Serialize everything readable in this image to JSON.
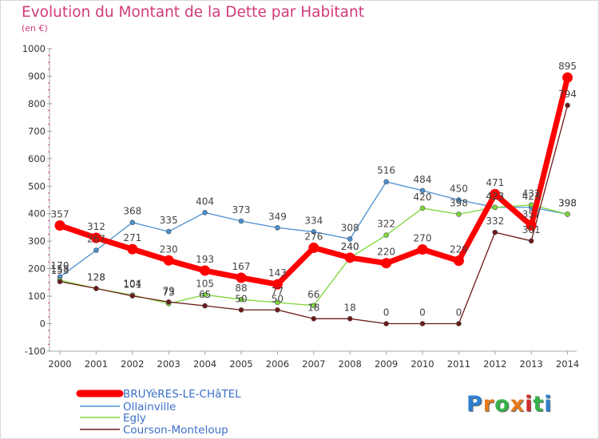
{
  "header": {
    "title": "Evolution du Montant de la Dette par Habitant",
    "unit": "(en €)"
  },
  "logo": {
    "text": "Proxiti",
    "colors": [
      "#2e7fd0",
      "#e77b1c",
      "#34b34a",
      "#e77b1c",
      "#d22b2b",
      "#34b34a",
      "#2e7fd0"
    ]
  },
  "chart_data": {
    "type": "line",
    "title": "Evolution du Montant de la Dette par Habitant",
    "subtitle": "(en €)",
    "xlabel": "",
    "ylabel": "",
    "x": [
      "2000",
      "2001",
      "2002",
      "2003",
      "2004",
      "2005",
      "2006",
      "2007",
      "2008",
      "2009",
      "2010",
      "2011",
      "2012",
      "2013",
      "2014"
    ],
    "ylim": [
      -100,
      1000
    ],
    "yticks": [
      "-100",
      "0",
      "100",
      "200",
      "300",
      "400",
      "500",
      "600",
      "700",
      "800",
      "900",
      "1000"
    ],
    "grid": false,
    "legend_position": "bottom-left",
    "series": [
      {
        "name": "BRUYèRES-LE-CHâTEL",
        "color": "#ff0000",
        "emphasis": true,
        "values": [
          357,
          312,
          271,
          230,
          193,
          167,
          143,
          276,
          240,
          220,
          270,
          229,
          471,
          357,
          895
        ],
        "labels": [
          "357",
          "312",
          "271",
          "230",
          "193",
          "167",
          "143",
          "276",
          "240",
          "220",
          "270",
          "229",
          "471",
          "357",
          "895"
        ]
      },
      {
        "name": "Ollainville",
        "color": "#4a90d0",
        "values": [
          170,
          267,
          368,
          335,
          404,
          373,
          349,
          334,
          308,
          516,
          484,
          450,
          423,
          423,
          398
        ],
        "labels": [
          "170",
          "267",
          "368",
          "335",
          "404",
          "373",
          "349",
          "334",
          "308",
          "516",
          "484",
          "450",
          "423",
          "423",
          "398"
        ]
      },
      {
        "name": "Egly",
        "color": "#7dd83a",
        "values": [
          158,
          128,
          104,
          73,
          105,
          88,
          77,
          66,
          240,
          322,
          420,
          398,
          423,
          432,
          398
        ],
        "labels": [
          "158",
          "128",
          "104",
          "73",
          "105",
          "88",
          "77",
          "66",
          "240",
          "322",
          "420",
          "398",
          "423",
          "432",
          "398"
        ]
      },
      {
        "name": "Courson-Monteloup",
        "color": "#6b1a1a",
        "values": [
          153,
          128,
          101,
          79,
          65,
          50,
          50,
          18,
          18,
          0,
          0,
          0,
          332,
          301,
          794
        ],
        "labels": [
          "153",
          "128",
          "101",
          "79",
          "65",
          "50",
          "50",
          "18",
          "18",
          "0",
          "0",
          "0",
          "332",
          "301",
          "794"
        ]
      }
    ]
  }
}
